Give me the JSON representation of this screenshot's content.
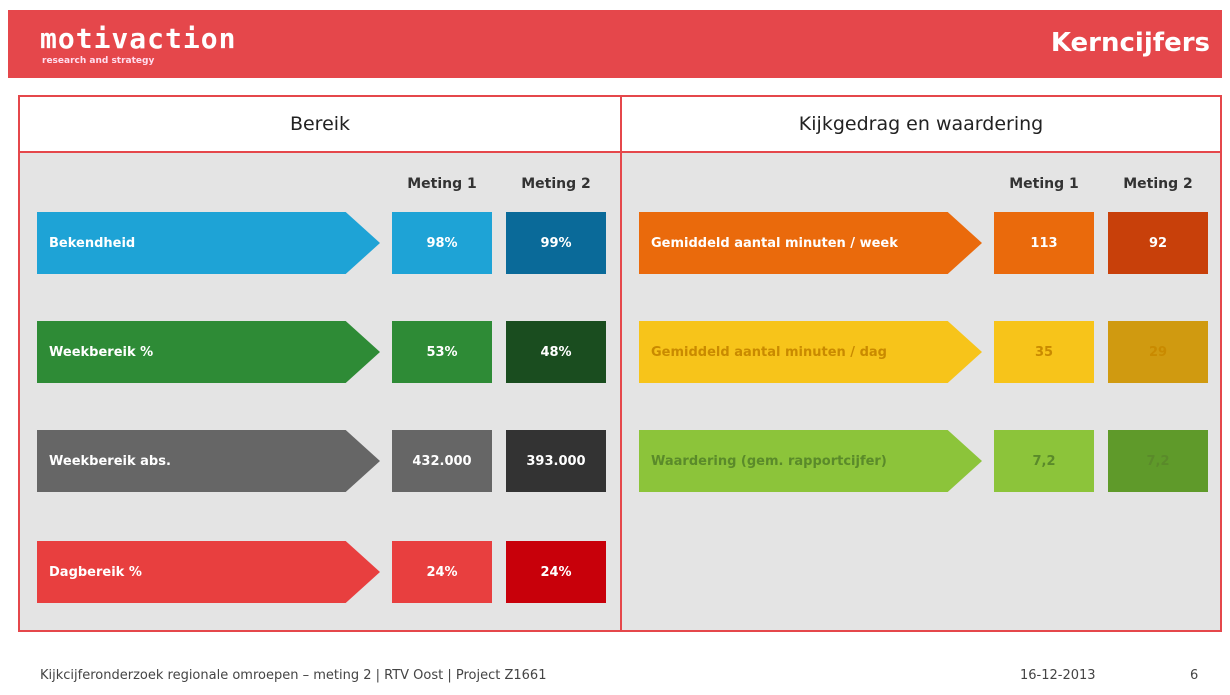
{
  "header": {
    "logo": "motivaction",
    "tagline": "research and strategy",
    "title": "Kerncijfers"
  },
  "panels": [
    {
      "title": "Bereik",
      "columns": [
        "Meting 1",
        "Meting 2"
      ],
      "rows": [
        {
          "label": "Bekendheid",
          "values": [
            "98%",
            "99%"
          ]
        },
        {
          "label": "Weekbereik %",
          "values": [
            "53%",
            "48%"
          ]
        },
        {
          "label": "Weekbereik abs.",
          "values": [
            "432.000",
            "393.000"
          ]
        },
        {
          "label": "Dagbereik %",
          "values": [
            "24%",
            "24%"
          ]
        }
      ]
    },
    {
      "title": "Kijkgedrag en waardering",
      "columns": [
        "Meting 1",
        "Meting 2"
      ],
      "rows": [
        {
          "label": "Gemiddeld aantal minuten / week",
          "values": [
            "113",
            "92"
          ]
        },
        {
          "label": "Gemiddeld aantal minuten / dag",
          "values": [
            "35",
            "29"
          ]
        },
        {
          "label": "Waardering (gem. rapportcijfer)",
          "values": [
            "7,2",
            "7,2"
          ]
        }
      ]
    }
  ],
  "footer": {
    "text": "Kijkcijferonderzoek regionale omroepen – meting 2 | RTV Oost | Project Z1661",
    "date": "16-12-2013",
    "page": "6"
  }
}
